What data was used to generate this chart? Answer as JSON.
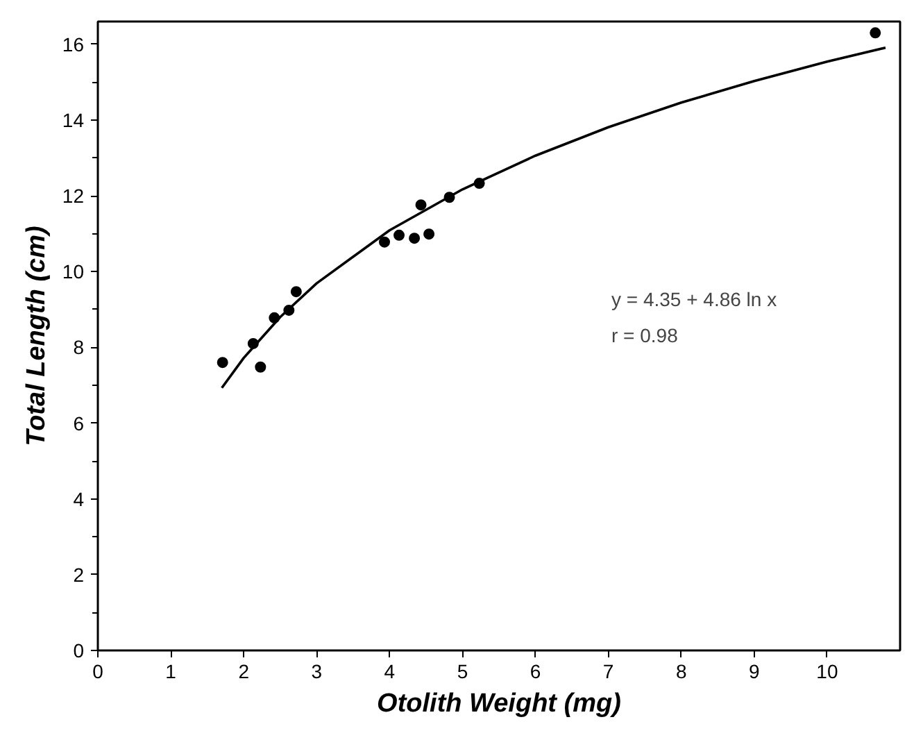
{
  "chart_data": {
    "type": "scatter",
    "xlabel": "Otolith Weight (mg)",
    "ylabel": "Total Length (cm)",
    "xlim": [
      0,
      11.0
    ],
    "ylim": [
      0,
      16.6
    ],
    "xticks": [
      0,
      1,
      2,
      3,
      4,
      5,
      6,
      7,
      8,
      9,
      10
    ],
    "yticks": [
      0,
      2,
      4,
      6,
      8,
      10,
      12,
      14,
      16
    ],
    "grid": false,
    "series": [
      {
        "color": "#000000",
        "marker": "circle",
        "x": [
          1.71,
          2.13,
          2.23,
          2.42,
          2.62,
          2.72,
          3.93,
          4.13,
          4.34,
          4.43,
          4.54,
          4.82,
          5.23,
          10.66
        ],
        "values": [
          7.6,
          8.1,
          7.48,
          8.78,
          8.98,
          9.47,
          10.78,
          10.96,
          10.88,
          11.76,
          10.99,
          11.96,
          12.33,
          16.3
        ]
      },
      {
        "type": "line",
        "color": "#000000",
        "marker": "none",
        "line_style": "solid",
        "x": [
          1.7,
          2,
          2.5,
          3,
          4,
          5,
          6,
          7,
          8,
          9,
          10,
          10.8
        ],
        "values": [
          6.93,
          7.72,
          8.8,
          9.69,
          11.09,
          12.17,
          13.06,
          13.81,
          14.46,
          15.03,
          15.54,
          15.91
        ]
      }
    ],
    "annotations": [
      "y = 4.35 + 4.86 ln x",
      "r = 0.98"
    ]
  }
}
